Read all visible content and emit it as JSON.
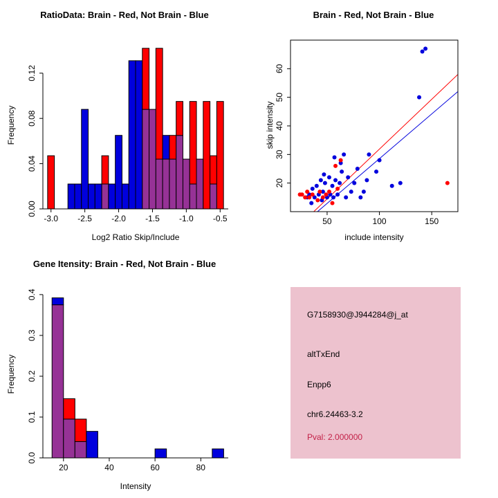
{
  "colors": {
    "red": "#FF0000",
    "blue": "#0000DD",
    "purple": "#963296",
    "axis": "#000000",
    "background": "#FFFFFF"
  },
  "chart_data": [
    {
      "type": "histogram",
      "title": "RatioData: Brain - Red, Not Brain - Blue",
      "xlabel": "Log2 Ratio Skip/Include",
      "ylabel": "Frequency",
      "xlim": [
        -3.12,
        -0.38
      ],
      "ylim": [
        0,
        0.148
      ],
      "grid": false,
      "xticks": [
        {
          "v": -3.0,
          "label": "-3.0"
        },
        {
          "v": -2.5,
          "label": "-2.5"
        },
        {
          "v": -2.0,
          "label": "-2.0"
        },
        {
          "v": -1.5,
          "label": "-1.5"
        },
        {
          "v": -1.0,
          "label": "-1.0"
        },
        {
          "v": -0.5,
          "label": "-0.5"
        }
      ],
      "yticks": [
        {
          "v": 0,
          "label": "0.00"
        },
        {
          "v": 0.04,
          "label": "0.04"
        },
        {
          "v": 0.08,
          "label": "0.08"
        },
        {
          "v": 0.12,
          "label": "0.12"
        }
      ],
      "bin_width": 0.1,
      "series_legend": {
        "red": "Brain",
        "blue": "Not Brain",
        "purple": "overlap"
      },
      "bins": [
        {
          "x": -3.05,
          "red": 0.047,
          "blue": 0
        },
        {
          "x": -2.95,
          "red": 0,
          "blue": 0
        },
        {
          "x": -2.85,
          "red": 0,
          "blue": 0
        },
        {
          "x": -2.75,
          "red": 0,
          "blue": 0.022
        },
        {
          "x": -2.65,
          "red": 0,
          "blue": 0.022
        },
        {
          "x": -2.55,
          "red": 0,
          "blue": 0.088
        },
        {
          "x": -2.45,
          "red": 0,
          "blue": 0.022
        },
        {
          "x": -2.35,
          "red": 0,
          "blue": 0.022
        },
        {
          "x": -2.25,
          "red": 0.047,
          "blue": 0.022
        },
        {
          "x": -2.15,
          "red": 0,
          "blue": 0.022
        },
        {
          "x": -2.05,
          "red": 0,
          "blue": 0.065
        },
        {
          "x": -1.95,
          "red": 0,
          "blue": 0.022
        },
        {
          "x": -1.85,
          "red": 0,
          "blue": 0.131
        },
        {
          "x": -1.75,
          "red": 0,
          "blue": 0.131
        },
        {
          "x": -1.65,
          "red": 0.142,
          "blue": 0.088
        },
        {
          "x": -1.55,
          "red": 0.088,
          "blue": 0.088
        },
        {
          "x": -1.45,
          "red": 0.142,
          "blue": 0.044
        },
        {
          "x": -1.35,
          "red": 0.044,
          "blue": 0.065
        },
        {
          "x": -1.25,
          "red": 0.065,
          "blue": 0.044
        },
        {
          "x": -1.15,
          "red": 0.095,
          "blue": 0.065
        },
        {
          "x": -1.05,
          "red": 0.044,
          "blue": 0.044
        },
        {
          "x": -0.95,
          "red": 0.095,
          "blue": 0.022
        },
        {
          "x": -0.85,
          "red": 0.044,
          "blue": 0.044
        },
        {
          "x": -0.75,
          "red": 0.095,
          "blue": 0
        },
        {
          "x": -0.65,
          "red": 0.047,
          "blue": 0.022
        },
        {
          "x": -0.55,
          "red": 0.095,
          "blue": 0
        }
      ]
    },
    {
      "type": "scatter",
      "title": "Brain - Red, Not Brain - Blue",
      "xlabel": "include intensity",
      "ylabel": "skip intensity",
      "xlim": [
        15,
        175
      ],
      "ylim": [
        10,
        70
      ],
      "grid": false,
      "box": true,
      "xticks": [
        {
          "v": 50,
          "label": "50"
        },
        {
          "v": 100,
          "label": "100"
        },
        {
          "v": 150,
          "label": "150"
        }
      ],
      "yticks": [
        {
          "v": 20,
          "label": "20"
        },
        {
          "v": 30,
          "label": "30"
        },
        {
          "v": 40,
          "label": "40"
        },
        {
          "v": 50,
          "label": "50"
        },
        {
          "v": 60,
          "label": "60"
        }
      ],
      "series": [
        {
          "name": "Not Brain",
          "color": "blue",
          "points": [
            [
              141,
              66
            ],
            [
              144,
              67
            ],
            [
              138,
              50
            ],
            [
              120,
              20
            ],
            [
              112,
              19
            ],
            [
              100,
              28
            ],
            [
              97,
              24
            ],
            [
              90,
              30
            ],
            [
              88,
              21
            ],
            [
              85,
              17
            ],
            [
              82,
              15
            ],
            [
              79,
              25
            ],
            [
              76,
              20
            ],
            [
              73,
              17
            ],
            [
              70,
              22
            ],
            [
              68,
              15
            ],
            [
              66,
              30
            ],
            [
              64,
              24
            ],
            [
              62,
              20
            ],
            [
              60,
              16
            ],
            [
              58,
              21
            ],
            [
              56,
              15
            ],
            [
              55,
              19
            ],
            [
              53,
              16
            ],
            [
              52,
              22
            ],
            [
              50,
              15
            ],
            [
              48,
              20
            ],
            [
              47,
              23
            ],
            [
              46,
              17
            ],
            [
              45,
              14
            ],
            [
              44,
              21
            ],
            [
              42,
              16
            ],
            [
              40,
              19
            ],
            [
              38,
              15
            ],
            [
              36,
              18
            ],
            [
              35,
              13
            ],
            [
              33,
              16
            ],
            [
              31,
              15
            ],
            [
              57,
              29
            ],
            [
              63,
              27
            ]
          ]
        },
        {
          "name": "Brain",
          "color": "red",
          "points": [
            [
              165,
              20
            ],
            [
              63,
              28
            ],
            [
              58,
              26
            ],
            [
              52,
              17
            ],
            [
              49,
              16
            ],
            [
              46,
              15
            ],
            [
              43,
              17
            ],
            [
              41,
              14
            ],
            [
              36,
              16
            ],
            [
              33,
              15
            ],
            [
              31,
              17
            ],
            [
              29,
              15
            ],
            [
              26,
              16
            ],
            [
              24,
              16
            ],
            [
              55,
              13
            ],
            [
              60,
              18
            ]
          ]
        }
      ],
      "fit_lines": [
        {
          "color": "red",
          "x1": 20,
          "y1": 4,
          "x2": 175,
          "y2": 58
        },
        {
          "color": "blue",
          "x1": 20,
          "y1": 3.5,
          "x2": 175,
          "y2": 52
        }
      ]
    },
    {
      "type": "histogram",
      "title": "Gene Itensity: Brain - Red, Not Brain - Blue",
      "xlabel": "Intensity",
      "ylabel": "Frequency",
      "xlim": [
        11,
        92
      ],
      "ylim": [
        0,
        0.41
      ],
      "grid": false,
      "xticks": [
        {
          "v": 20,
          "label": "20"
        },
        {
          "v": 40,
          "label": "40"
        },
        {
          "v": 60,
          "label": "60"
        },
        {
          "v": 80,
          "label": "80"
        }
      ],
      "yticks": [
        {
          "v": 0,
          "label": "0.0"
        },
        {
          "v": 0.1,
          "label": "0.1"
        },
        {
          "v": 0.2,
          "label": "0.2"
        },
        {
          "v": 0.3,
          "label": "0.3"
        },
        {
          "v": 0.4,
          "label": "0.4"
        }
      ],
      "bin_width": 5,
      "series_legend": {
        "red": "Brain",
        "blue": "Not Brain",
        "purple": "overlap"
      },
      "bins": [
        {
          "x": 15,
          "red": 0.375,
          "blue": 0.392
        },
        {
          "x": 20,
          "red": 0.145,
          "blue": 0.095
        },
        {
          "x": 25,
          "red": 0.095,
          "blue": 0.04
        },
        {
          "x": 30,
          "red": 0,
          "blue": 0.065
        },
        {
          "x": 60,
          "red": 0,
          "blue": 0.022
        },
        {
          "x": 85,
          "red": 0,
          "blue": 0.022
        }
      ]
    }
  ],
  "info_box": {
    "bg": "#EDC2CE",
    "lines": [
      "G7158930@J944284@j_at",
      "altTxEnd",
      "Enpp6",
      "chr6.24463-3.2"
    ],
    "pval": "Pval: 2.000000",
    "pval_color": "#C32148"
  }
}
